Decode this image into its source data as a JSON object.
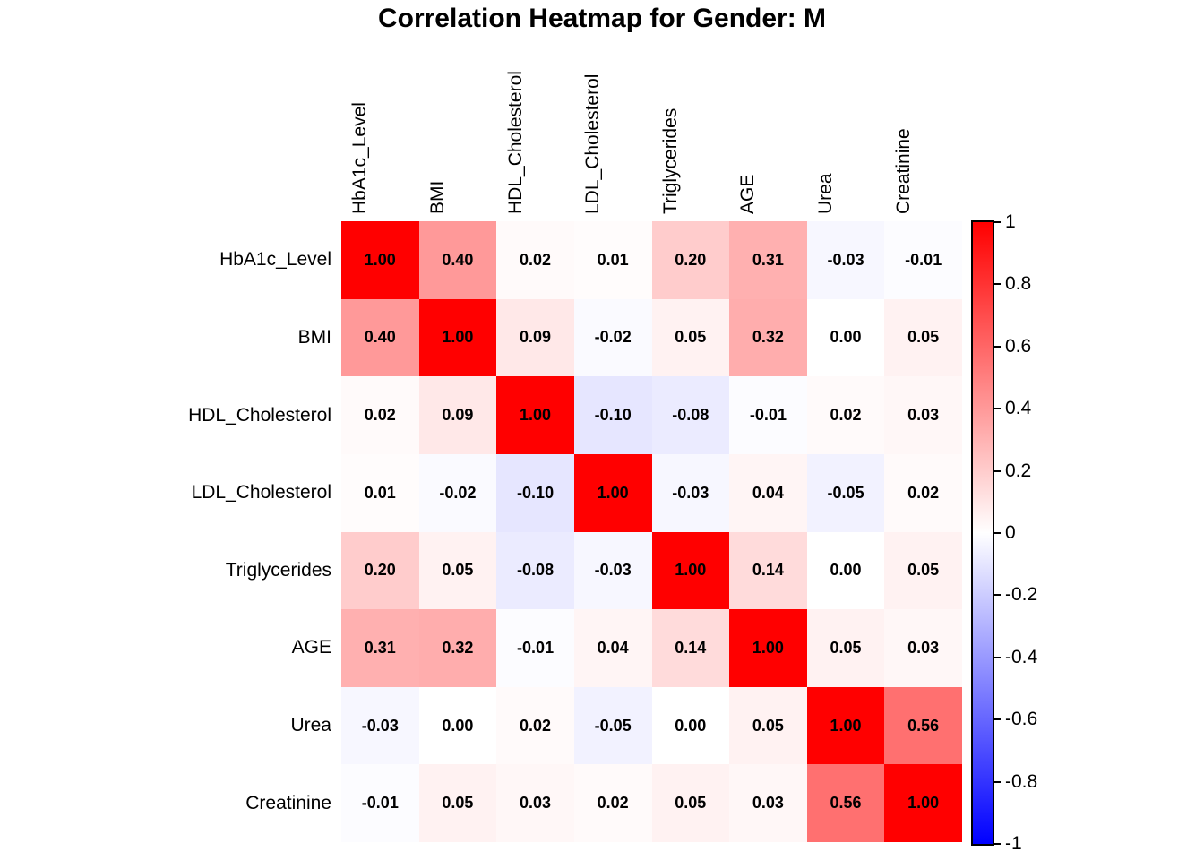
{
  "title": "Correlation Heatmap for Gender: M",
  "chart_data": {
    "type": "heatmap",
    "title": "Correlation Heatmap for Gender: M",
    "x_categories": [
      "HbA1c_Level",
      "BMI",
      "HDL_Cholesterol",
      "LDL_Cholesterol",
      "Triglycerides",
      "AGE",
      "Urea",
      "Creatinine"
    ],
    "y_categories": [
      "HbA1c_Level",
      "BMI",
      "HDL_Cholesterol",
      "LDL_Cholesterol",
      "Triglycerides",
      "AGE",
      "Urea",
      "Creatinine"
    ],
    "matrix": [
      [
        1.0,
        0.4,
        0.02,
        0.01,
        0.2,
        0.31,
        -0.03,
        -0.01
      ],
      [
        0.4,
        1.0,
        0.09,
        -0.02,
        0.05,
        0.32,
        0.0,
        0.05
      ],
      [
        0.02,
        0.09,
        1.0,
        -0.1,
        -0.08,
        -0.01,
        0.02,
        0.03
      ],
      [
        0.01,
        -0.02,
        -0.1,
        1.0,
        -0.03,
        0.04,
        -0.05,
        0.02
      ],
      [
        0.2,
        0.05,
        -0.08,
        -0.03,
        1.0,
        0.14,
        0.0,
        0.05
      ],
      [
        0.31,
        0.32,
        -0.01,
        0.04,
        0.14,
        1.0,
        0.05,
        0.03
      ],
      [
        -0.03,
        0.0,
        0.02,
        -0.05,
        0.0,
        0.05,
        1.0,
        0.56
      ],
      [
        -0.01,
        0.05,
        0.03,
        0.02,
        0.05,
        0.03,
        0.56,
        1.0
      ]
    ],
    "value_decimals": 2,
    "color_scale": {
      "min": -1,
      "mid": 0,
      "max": 1,
      "min_color": "#0000ff",
      "mid_color": "#ffffff",
      "max_color": "#ff0000"
    },
    "colorbar": {
      "position": "right",
      "tick_labels": [
        "1",
        "0.8",
        "0.6",
        "0.4",
        "0.2",
        "0",
        "-0.2",
        "-0.4",
        "-0.6",
        "-0.8",
        "-1"
      ],
      "tick_values": [
        1,
        0.8,
        0.6,
        0.4,
        0.2,
        0,
        -0.2,
        -0.4,
        -0.6,
        -0.8,
        -1
      ]
    },
    "grid": false,
    "legend": false
  }
}
